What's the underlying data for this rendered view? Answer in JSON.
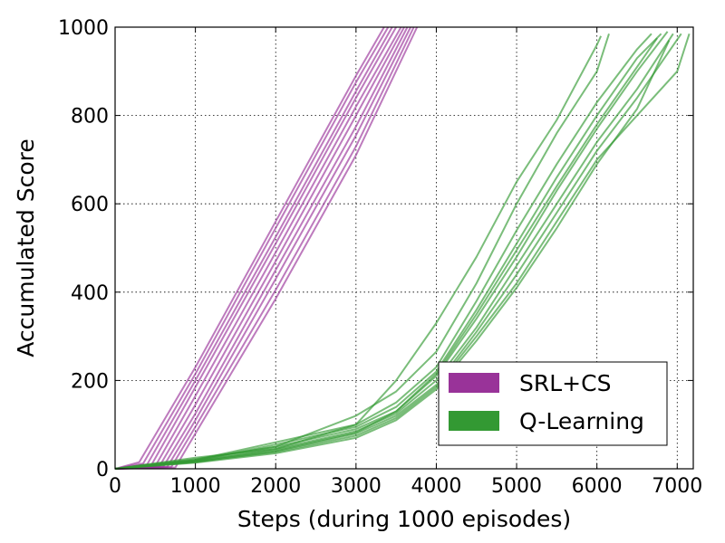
{
  "chart_data": {
    "type": "line",
    "title": "",
    "xlabel": "Steps (during 1000 episodes)",
    "ylabel": "Accumulated Score",
    "xlim": [
      0,
      7200
    ],
    "ylim": [
      0,
      1000
    ],
    "x_ticks": [
      0,
      1000,
      2000,
      3000,
      4000,
      5000,
      6000,
      7000
    ],
    "y_ticks": [
      0,
      200,
      400,
      600,
      800,
      1000
    ],
    "grid": true,
    "legend_position": "lower-right",
    "legend": [
      {
        "label": "SRL+CS",
        "color": "#993399"
      },
      {
        "label": "Q-Learning",
        "color": "#339933"
      }
    ],
    "groups": [
      {
        "name": "SRL+CS",
        "color": "#993399",
        "runs": [
          [
            [
              0,
              0
            ],
            [
              300,
              15
            ],
            [
              1000,
              230
            ],
            [
              2000,
              560
            ],
            [
              3000,
              890
            ],
            [
              3350,
              1000
            ]
          ],
          [
            [
              0,
              0
            ],
            [
              350,
              12
            ],
            [
              1000,
              215
            ],
            [
              2000,
              545
            ],
            [
              3000,
              875
            ],
            [
              3400,
              1000
            ]
          ],
          [
            [
              0,
              0
            ],
            [
              400,
              10
            ],
            [
              1000,
              200
            ],
            [
              2000,
              525
            ],
            [
              3000,
              855
            ],
            [
              3450,
              1000
            ]
          ],
          [
            [
              0,
              0
            ],
            [
              450,
              8
            ],
            [
              1000,
              185
            ],
            [
              2000,
              510
            ],
            [
              3000,
              840
            ],
            [
              3500,
              1000
            ]
          ],
          [
            [
              0,
              0
            ],
            [
              500,
              6
            ],
            [
              1000,
              165
            ],
            [
              2000,
              490
            ],
            [
              3000,
              820
            ],
            [
              3560,
              1000
            ]
          ],
          [
            [
              0,
              0
            ],
            [
              550,
              5
            ],
            [
              1000,
              145
            ],
            [
              2000,
              470
            ],
            [
              3000,
              800
            ],
            [
              3600,
              1000
            ]
          ],
          [
            [
              0,
              0
            ],
            [
              600,
              5
            ],
            [
              1000,
              125
            ],
            [
              2000,
              450
            ],
            [
              3000,
              775
            ],
            [
              3640,
              1000
            ]
          ],
          [
            [
              0,
              0
            ],
            [
              650,
              4
            ],
            [
              1000,
              110
            ],
            [
              2000,
              430
            ],
            [
              3000,
              755
            ],
            [
              3680,
              1000
            ]
          ],
          [
            [
              0,
              0
            ],
            [
              700,
              4
            ],
            [
              1000,
              95
            ],
            [
              2000,
              405
            ],
            [
              3000,
              730
            ],
            [
              3720,
              1000
            ]
          ],
          [
            [
              0,
              0
            ],
            [
              750,
              3
            ],
            [
              1000,
              80
            ],
            [
              2000,
              385
            ],
            [
              3000,
              710
            ],
            [
              3760,
              1000
            ]
          ]
        ]
      },
      {
        "name": "Q-Learning",
        "color": "#339933",
        "runs": [
          [
            [
              0,
              0
            ],
            [
              1000,
              25
            ],
            [
              2000,
              45
            ],
            [
              3000,
              100
            ],
            [
              3500,
              200
            ],
            [
              4000,
              330
            ],
            [
              4500,
              480
            ],
            [
              5000,
              650
            ],
            [
              5500,
              790
            ],
            [
              6000,
              960
            ],
            [
              6050,
              980
            ]
          ],
          [
            [
              0,
              0
            ],
            [
              1000,
              22
            ],
            [
              2000,
              50
            ],
            [
              3000,
              120
            ],
            [
              3500,
              175
            ],
            [
              4000,
              265
            ],
            [
              4500,
              420
            ],
            [
              5000,
              600
            ],
            [
              5500,
              760
            ],
            [
              6000,
              900
            ],
            [
              6150,
              985
            ]
          ],
          [
            [
              0,
              0
            ],
            [
              1000,
              20
            ],
            [
              2000,
              60
            ],
            [
              3000,
              100
            ],
            [
              3500,
              150
            ],
            [
              4000,
              230
            ],
            [
              4500,
              380
            ],
            [
              5000,
              540
            ],
            [
              5500,
              690
            ],
            [
              6000,
              830
            ],
            [
              6500,
              950
            ],
            [
              6680,
              985
            ]
          ],
          [
            [
              0,
              0
            ],
            [
              1000,
              18
            ],
            [
              2000,
              55
            ],
            [
              3000,
              95
            ],
            [
              3500,
              140
            ],
            [
              4000,
              220
            ],
            [
              4500,
              360
            ],
            [
              5000,
              510
            ],
            [
              5500,
              660
            ],
            [
              6000,
              800
            ],
            [
              6500,
              930
            ],
            [
              6800,
              985
            ]
          ],
          [
            [
              0,
              0
            ],
            [
              1000,
              20
            ],
            [
              2000,
              50
            ],
            [
              3000,
              90
            ],
            [
              3500,
              130
            ],
            [
              4000,
              210
            ],
            [
              4500,
              340
            ],
            [
              5000,
              480
            ],
            [
              5500,
              630
            ],
            [
              6000,
              770
            ],
            [
              6500,
              900
            ],
            [
              6880,
              990
            ]
          ],
          [
            [
              0,
              0
            ],
            [
              1000,
              17
            ],
            [
              2000,
              45
            ],
            [
              3000,
              85
            ],
            [
              3500,
              125
            ],
            [
              4000,
              200
            ],
            [
              4500,
              320
            ],
            [
              5000,
              460
            ],
            [
              5500,
              600
            ],
            [
              6000,
              740
            ],
            [
              6500,
              860
            ],
            [
              6950,
              985
            ]
          ],
          [
            [
              0,
              0
            ],
            [
              1000,
              15
            ],
            [
              2000,
              40
            ],
            [
              3000,
              80
            ],
            [
              3500,
              120
            ],
            [
              4000,
              190
            ],
            [
              4500,
              310
            ],
            [
              5000,
              440
            ],
            [
              5500,
              580
            ],
            [
              6000,
              720
            ],
            [
              6500,
              840
            ],
            [
              7050,
              985
            ]
          ],
          [
            [
              0,
              0
            ],
            [
              1000,
              16
            ],
            [
              2000,
              38
            ],
            [
              3000,
              75
            ],
            [
              3500,
              115
            ],
            [
              4000,
              185
            ],
            [
              4500,
              300
            ],
            [
              5000,
              420
            ],
            [
              5500,
              560
            ],
            [
              6000,
              700
            ],
            [
              6500,
              800
            ],
            [
              7000,
              900
            ],
            [
              7150,
              985
            ]
          ],
          [
            [
              0,
              0
            ],
            [
              1000,
              14
            ],
            [
              2000,
              35
            ],
            [
              3000,
              70
            ],
            [
              3500,
              110
            ],
            [
              4000,
              180
            ],
            [
              4500,
              290
            ],
            [
              5000,
              410
            ],
            [
              5500,
              545
            ],
            [
              6000,
              690
            ],
            [
              6500,
              815
            ],
            [
              6900,
              970
            ]
          ],
          [
            [
              0,
              0
            ],
            [
              1000,
              18
            ],
            [
              2000,
              42
            ],
            [
              3000,
              82
            ],
            [
              3500,
              130
            ],
            [
              4000,
              215
            ],
            [
              4500,
              350
            ],
            [
              5000,
              495
            ],
            [
              5500,
              640
            ],
            [
              6000,
              780
            ],
            [
              6500,
              910
            ],
            [
              6750,
              975
            ]
          ]
        ]
      }
    ]
  }
}
